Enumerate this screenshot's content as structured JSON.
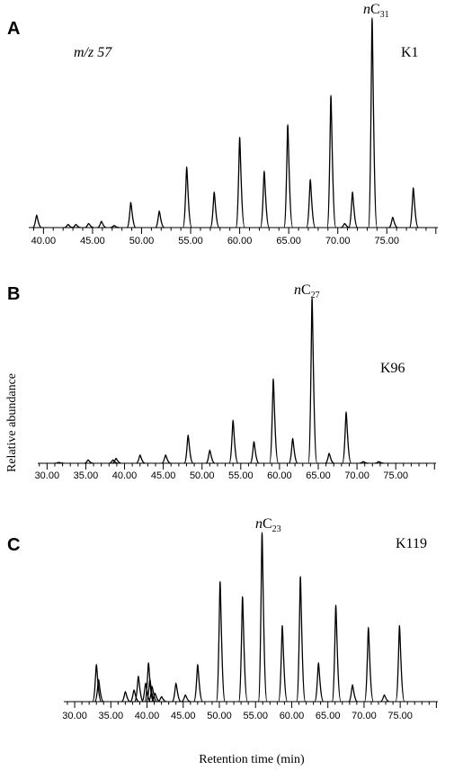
{
  "figure": {
    "xlabel": "Retention time (min)",
    "ylabel": "Relative abundance"
  },
  "chart_data": [
    {
      "type": "line",
      "panel": "A",
      "sample": "K1",
      "ion": "m/z 57",
      "peak_label": {
        "prefix": "n",
        "base": "C",
        "sub": "31",
        "at_x": 73.5
      },
      "xlim": [
        38.5,
        80.2
      ],
      "ticks": [
        "40.00",
        "45.00",
        "50.00",
        "55.00",
        "60.00",
        "65.00",
        "70.00",
        "75.00"
      ],
      "peaks": [
        {
          "x": 39.3,
          "y": 6
        },
        {
          "x": 42.5,
          "y": 1.5
        },
        {
          "x": 43.3,
          "y": 1.5
        },
        {
          "x": 44.6,
          "y": 2
        },
        {
          "x": 45.9,
          "y": 3
        },
        {
          "x": 47.2,
          "y": 1
        },
        {
          "x": 48.9,
          "y": 12
        },
        {
          "x": 51.8,
          "y": 8
        },
        {
          "x": 54.6,
          "y": 29
        },
        {
          "x": 57.4,
          "y": 17
        },
        {
          "x": 60.0,
          "y": 43
        },
        {
          "x": 62.5,
          "y": 27
        },
        {
          "x": 64.9,
          "y": 49
        },
        {
          "x": 67.2,
          "y": 23
        },
        {
          "x": 69.3,
          "y": 63
        },
        {
          "x": 70.7,
          "y": 2
        },
        {
          "x": 71.5,
          "y": 17
        },
        {
          "x": 73.5,
          "y": 100
        },
        {
          "x": 75.6,
          "y": 5
        },
        {
          "x": 77.7,
          "y": 19
        }
      ]
    },
    {
      "type": "line",
      "panel": "B",
      "sample": "K96",
      "peak_label": {
        "prefix": "n",
        "base": "C",
        "sub": "27",
        "at_x": 64.2
      },
      "xlim": [
        28.8,
        80.2
      ],
      "ticks": [
        "30.00",
        "35.00",
        "40.00",
        "45.00",
        "50.00",
        "55.00",
        "60.00",
        "65.00",
        "70.00",
        "75.00"
      ],
      "peaks": [
        {
          "x": 31.5,
          "y": 0.5
        },
        {
          "x": 35.3,
          "y": 2
        },
        {
          "x": 38.5,
          "y": 2
        },
        {
          "x": 38.9,
          "y": 3
        },
        {
          "x": 42.0,
          "y": 5
        },
        {
          "x": 45.3,
          "y": 5
        },
        {
          "x": 48.2,
          "y": 17
        },
        {
          "x": 51.0,
          "y": 8
        },
        {
          "x": 54.0,
          "y": 26
        },
        {
          "x": 56.7,
          "y": 13
        },
        {
          "x": 59.2,
          "y": 51
        },
        {
          "x": 61.7,
          "y": 15
        },
        {
          "x": 64.2,
          "y": 100
        },
        {
          "x": 66.4,
          "y": 6
        },
        {
          "x": 68.6,
          "y": 31
        },
        {
          "x": 70.8,
          "y": 1
        },
        {
          "x": 72.8,
          "y": 1
        }
      ]
    },
    {
      "type": "line",
      "panel": "C",
      "sample": "K119",
      "peak_label": {
        "prefix": "n",
        "base": "C",
        "sub": "23",
        "at_x": 55.9
      },
      "xlim": [
        28.5,
        80.2
      ],
      "ticks": [
        "30.00",
        "35.00",
        "40.00",
        "45.00",
        "50.00",
        "55.00",
        "60.00",
        "65.00",
        "70.00",
        "75.00"
      ],
      "peaks": [
        {
          "x": 33.0,
          "y": 22
        },
        {
          "x": 33.3,
          "y": 13
        },
        {
          "x": 37.0,
          "y": 6
        },
        {
          "x": 38.2,
          "y": 7
        },
        {
          "x": 38.8,
          "y": 15
        },
        {
          "x": 39.8,
          "y": 11
        },
        {
          "x": 40.2,
          "y": 23
        },
        {
          "x": 40.4,
          "y": 13
        },
        {
          "x": 40.7,
          "y": 9
        },
        {
          "x": 41.1,
          "y": 5
        },
        {
          "x": 42.0,
          "y": 3
        },
        {
          "x": 44.0,
          "y": 11
        },
        {
          "x": 45.3,
          "y": 4
        },
        {
          "x": 47.0,
          "y": 22
        },
        {
          "x": 50.1,
          "y": 71
        },
        {
          "x": 53.2,
          "y": 62
        },
        {
          "x": 55.9,
          "y": 100
        },
        {
          "x": 58.7,
          "y": 45
        },
        {
          "x": 61.2,
          "y": 74
        },
        {
          "x": 63.7,
          "y": 23
        },
        {
          "x": 66.1,
          "y": 57
        },
        {
          "x": 68.4,
          "y": 10
        },
        {
          "x": 70.6,
          "y": 44
        },
        {
          "x": 72.8,
          "y": 4
        },
        {
          "x": 74.9,
          "y": 45
        }
      ]
    }
  ]
}
